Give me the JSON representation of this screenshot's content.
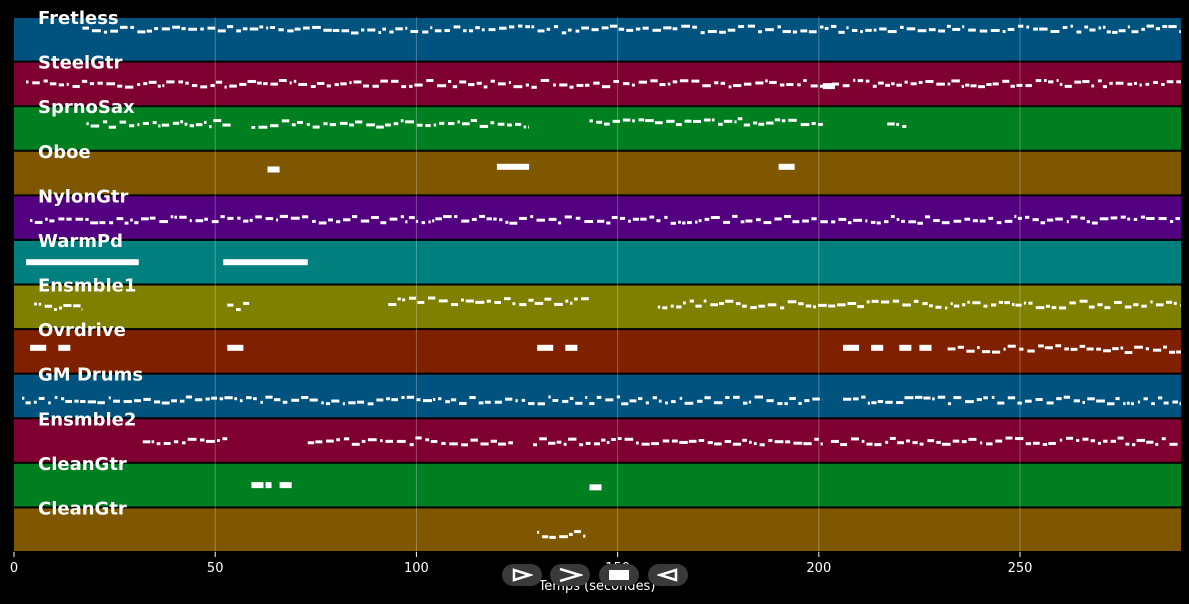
{
  "chart_data": {
    "type": "piano-roll",
    "xlabel": "Temps (secondes)",
    "xlim": [
      0,
      290
    ],
    "xticks": [
      0,
      50,
      100,
      150,
      200,
      250
    ],
    "grid": true,
    "tracks": [
      {
        "name": "Fretless",
        "color": "#00527f",
        "notes": [
          [
            17,
            290,
            "dense",
            0.28
          ]
        ]
      },
      {
        "name": "SteelGtr",
        "color": "#7d0030",
        "notes": [
          [
            3,
            290,
            "dense",
            0.5
          ],
          [
            201,
            204,
            "block",
            0.55
          ]
        ]
      },
      {
        "name": "SprnoSax",
        "color": "#007f20",
        "notes": [
          [
            18,
            54,
            "dense",
            0.4
          ],
          [
            59,
            128,
            "dense",
            0.4
          ],
          [
            143,
            201,
            "dense",
            0.35
          ],
          [
            217,
            222,
            "dense",
            0.42
          ]
        ]
      },
      {
        "name": "Oboe",
        "color": "#7f5700",
        "notes": [
          [
            63,
            66,
            "block",
            0.42
          ],
          [
            120,
            128,
            "block",
            0.36
          ],
          [
            190,
            194,
            "block",
            0.36
          ]
        ]
      },
      {
        "name": "NylonGtr",
        "color": "#52007f",
        "notes": [
          [
            4,
            290,
            "dense",
            0.55
          ]
        ]
      },
      {
        "name": "WarmPd",
        "color": "#007f7f",
        "notes": [
          [
            3,
            31,
            "block",
            0.5
          ],
          [
            52,
            73,
            "block",
            0.5
          ]
        ]
      },
      {
        "name": "Ensmble1",
        "color": "#7f7f00",
        "notes": [
          [
            5,
            17,
            "dense",
            0.5
          ],
          [
            53,
            59,
            "dense",
            0.5
          ],
          [
            93,
            143,
            "dense",
            0.38
          ],
          [
            160,
            290,
            "dense",
            0.45
          ]
        ]
      },
      {
        "name": "Ovrdrive",
        "color": "#7f2000",
        "notes": [
          [
            4,
            8,
            "block",
            0.42
          ],
          [
            11,
            14,
            "block",
            0.42
          ],
          [
            53,
            57,
            "block",
            0.42
          ],
          [
            130,
            134,
            "block",
            0.42
          ],
          [
            137,
            140,
            "block",
            0.42
          ],
          [
            206,
            210,
            "block",
            0.42
          ],
          [
            213,
            216,
            "block",
            0.42
          ],
          [
            220,
            223,
            "block",
            0.42
          ],
          [
            225,
            228,
            "block",
            0.42
          ],
          [
            232,
            290,
            "dense",
            0.45
          ]
        ]
      },
      {
        "name": "GM Drums",
        "color": "#00527f",
        "notes": [
          [
            2,
            201,
            "dense",
            0.6
          ],
          [
            206,
            290,
            "dense",
            0.6
          ]
        ]
      },
      {
        "name": "Ensmble2",
        "color": "#7d0030",
        "notes": [
          [
            32,
            53,
            "dense",
            0.52
          ],
          [
            73,
            124,
            "dense",
            0.52
          ],
          [
            129,
            201,
            "dense",
            0.52
          ],
          [
            203,
            290,
            "dense",
            0.52
          ]
        ]
      },
      {
        "name": "CleanGtr",
        "color": "#007f20",
        "notes": [
          [
            59,
            62,
            "block",
            0.5
          ],
          [
            62.5,
            64,
            "block",
            0.5
          ],
          [
            66,
            69,
            "block",
            0.5
          ],
          [
            143,
            146,
            "block",
            0.55
          ]
        ]
      },
      {
        "name": "CleanGtr",
        "color": "#7f5700",
        "notes": [
          [
            130,
            142,
            "dense",
            0.6
          ]
        ]
      }
    ]
  },
  "controls": {
    "icons": [
      "play-icon",
      "fast-forward-icon",
      "stop-icon",
      "rewind-icon"
    ]
  }
}
